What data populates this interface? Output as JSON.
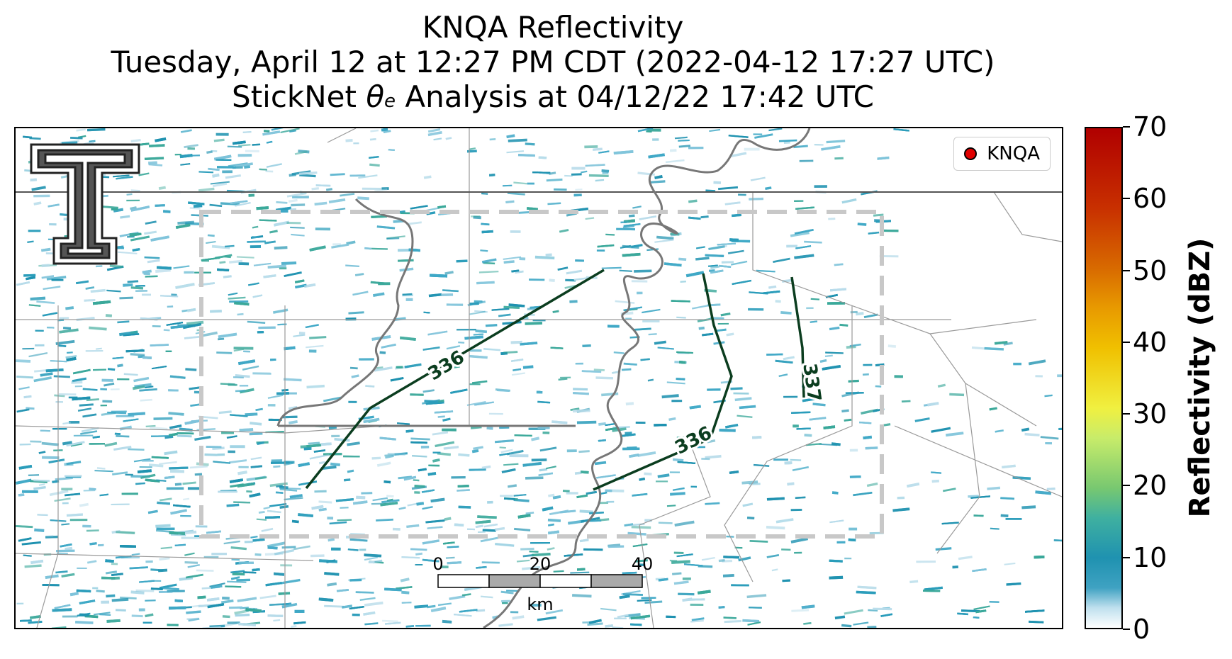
{
  "titles": {
    "line1": "KNQA Reflectivity",
    "line2": "Tuesday, April 12 at 12:27 PM CDT (2022-04-12 17:27 UTC)",
    "line3_prefix": "StickNet ",
    "line3_theta": "θ",
    "line3_sub": "e",
    "line3_suffix": " Analysis at 04/12/22 17:42 UTC"
  },
  "legend": {
    "label": "KNQA",
    "marker_color": "#e00000"
  },
  "contours": [
    {
      "label": "336",
      "color": "#0b3d1f"
    },
    {
      "label": "336",
      "color": "#0b3d1f"
    },
    {
      "label": "337",
      "color": "#0b3d1f"
    }
  ],
  "scalebar": {
    "ticks": [
      "0",
      "20",
      "40"
    ],
    "unit": "km"
  },
  "colorbar": {
    "title": "Reflectivity (dBZ)",
    "min": 0,
    "max": 70,
    "ticks": [
      "0",
      "10",
      "20",
      "30",
      "40",
      "50",
      "60",
      "70"
    ]
  },
  "colors": {
    "reflectivity_low": "#1f92b0",
    "box_dash": "#c8c8c8",
    "river": "#777777"
  },
  "logo": {
    "name": "texas-tech-double-t-logo"
  }
}
